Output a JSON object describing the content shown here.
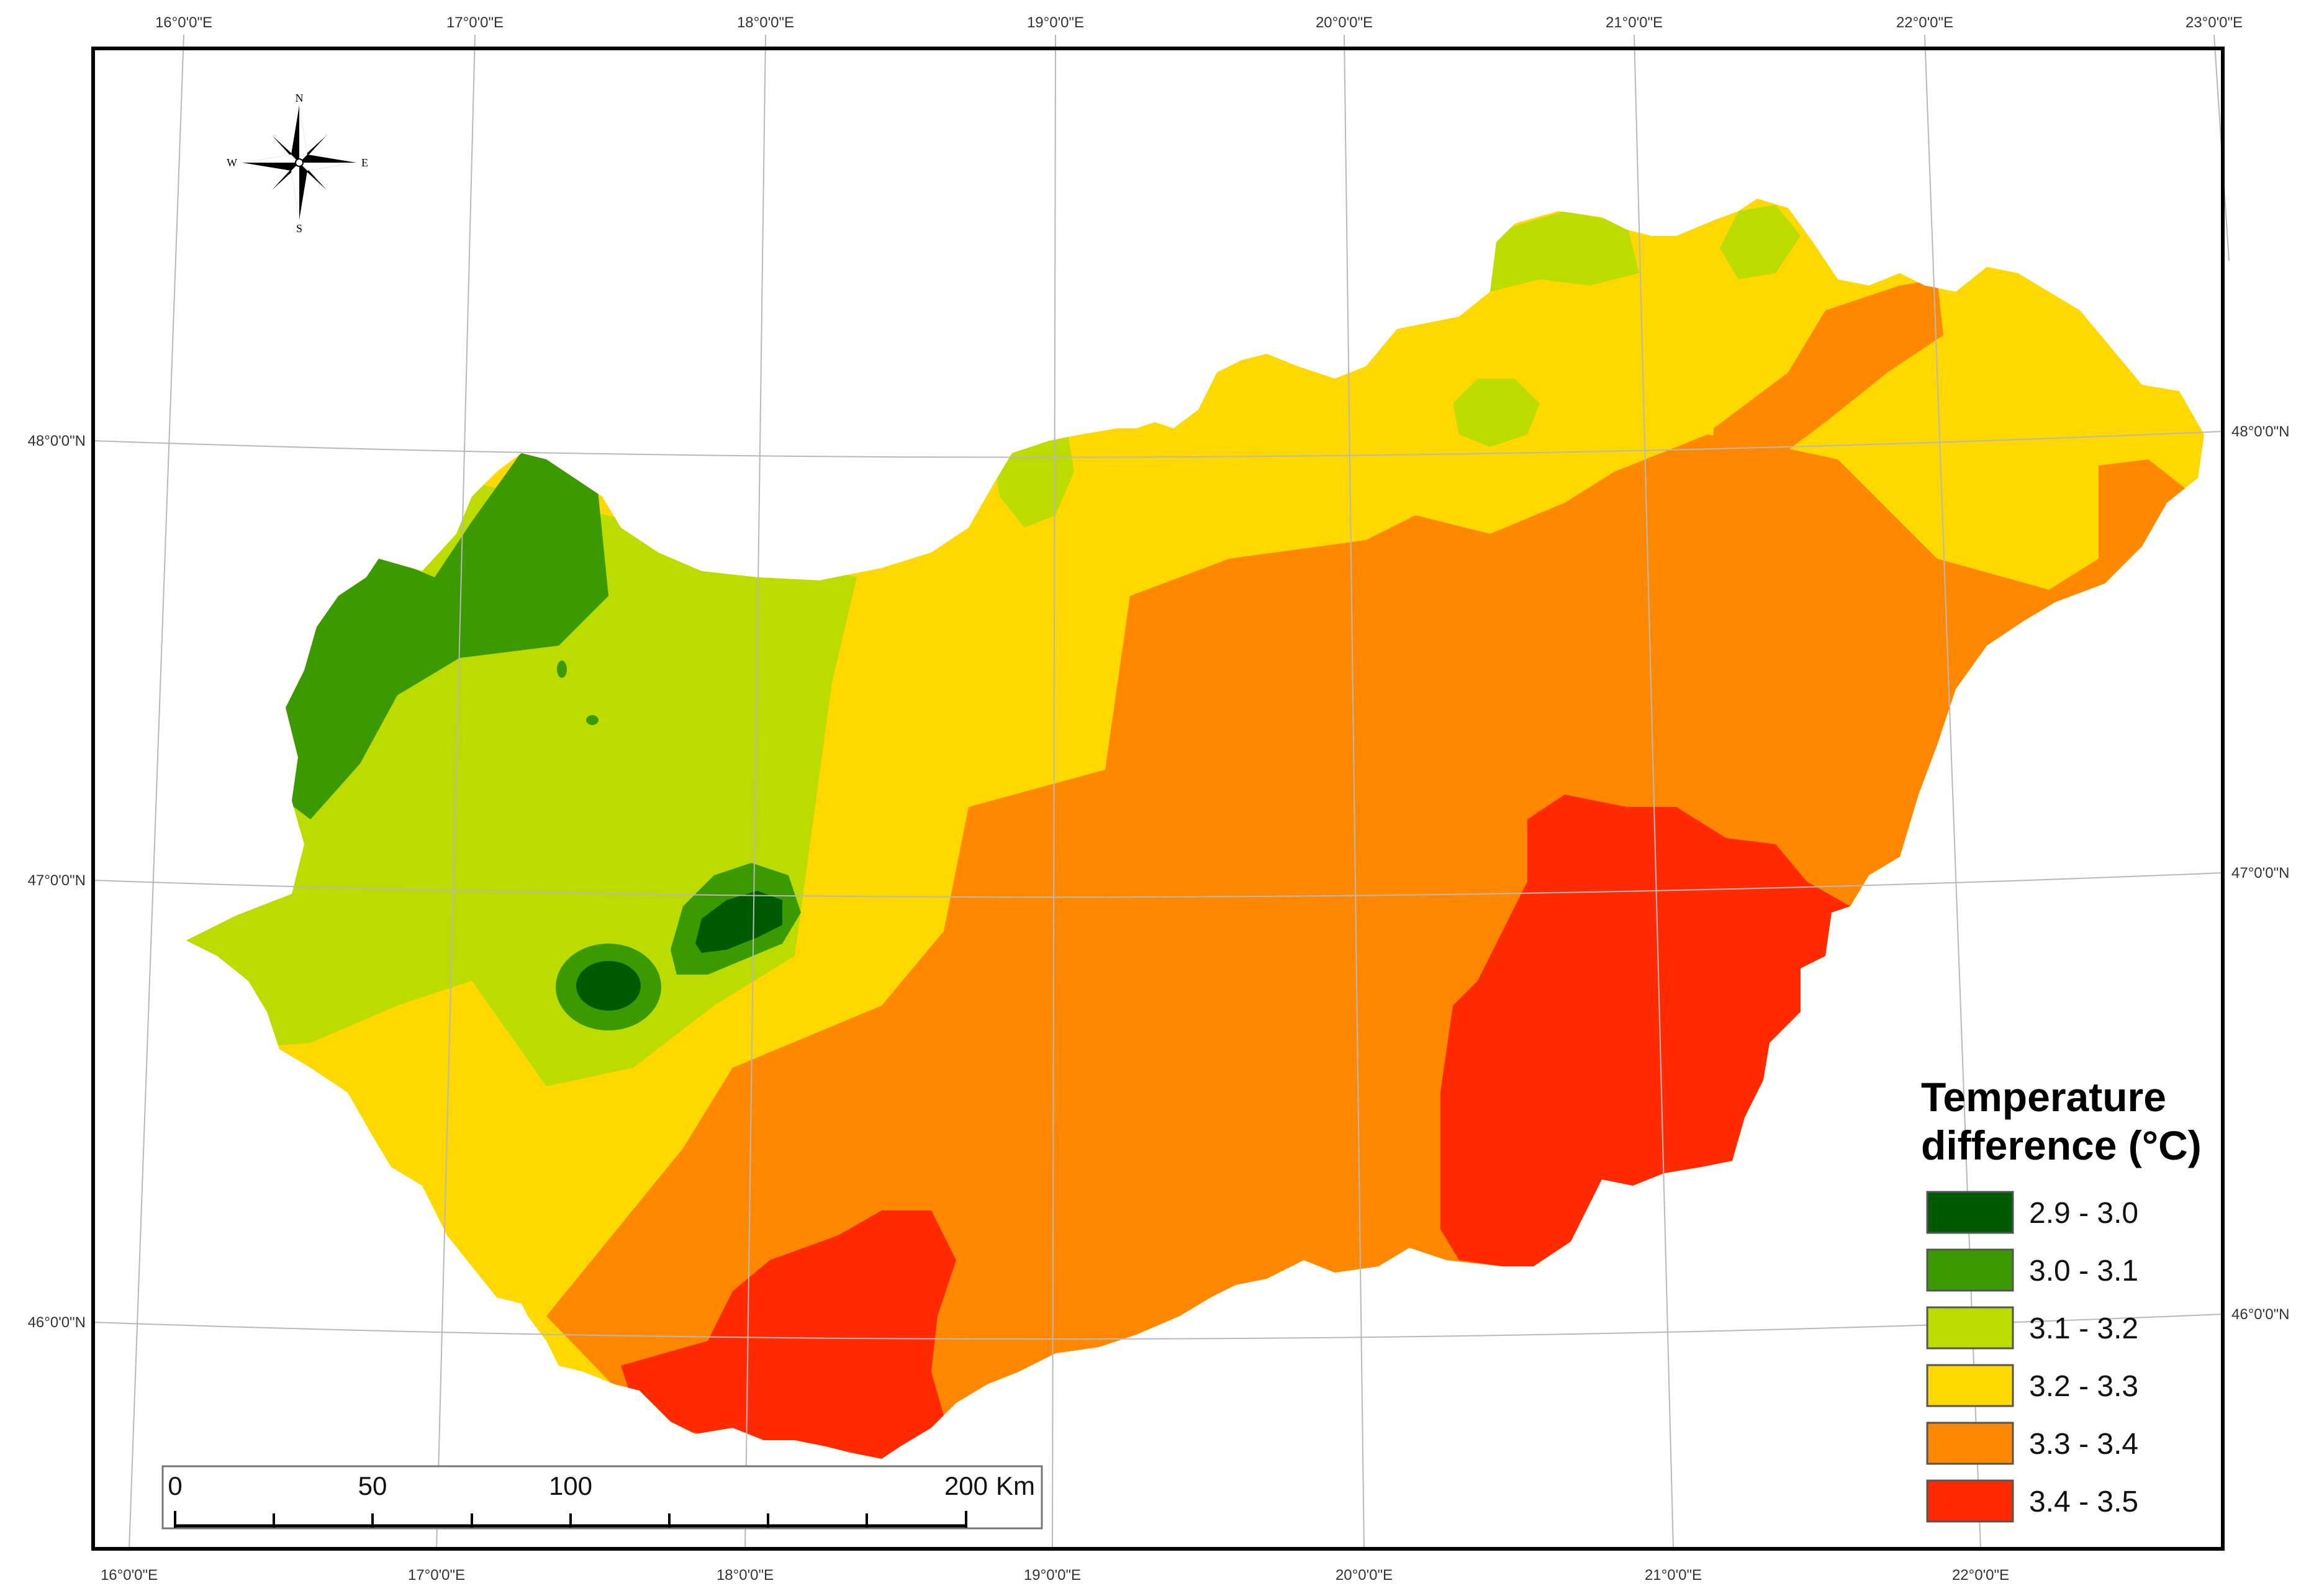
{
  "graticule": {
    "lon_labels_top": [
      "16°0'0\"E",
      "17°0'0\"E",
      "18°0'0\"E",
      "19°0'0\"E",
      "20°0'0\"E",
      "21°0'0\"E",
      "22°0'0\"E",
      "23°0'0\"E"
    ],
    "lon_labels_bottom": [
      "16°0'0\"E",
      "17°0'0\"E",
      "18°0'0\"E",
      "19°0'0\"E",
      "20°0'0\"E",
      "21°0'0\"E",
      "22°0'0\"E"
    ],
    "lat_labels_left": [
      "48°0'0\"N",
      "47°0'0\"N",
      "46°0'0\"N"
    ],
    "lat_labels_right": [
      "48°0'0\"N",
      "47°0'0\"N",
      "46°0'0\"N"
    ]
  },
  "compass": {
    "n": "N",
    "s": "S",
    "e": "E",
    "w": "W"
  },
  "legend": {
    "title_line1": "Temperature",
    "title_line2": "difference (°C)",
    "classes": [
      {
        "label": "2.9 - 3.0",
        "color": "#005a00"
      },
      {
        "label": "3.0 - 3.1",
        "color": "#3a9a00"
      },
      {
        "label": "3.1 - 3.2",
        "color": "#bcdc00"
      },
      {
        "label": "3.2 - 3.3",
        "color": "#ffd800"
      },
      {
        "label": "3.3 - 3.4",
        "color": "#ff8800"
      },
      {
        "label": "3.4 - 3.5",
        "color": "#ff2a00"
      }
    ]
  },
  "scale_bar": {
    "labels": [
      "0",
      "50",
      "100",
      "200"
    ],
    "unit": "Km"
  },
  "colors": {
    "frame": "#000000",
    "grid": "#b8b8b8",
    "background": "#ffffff"
  }
}
